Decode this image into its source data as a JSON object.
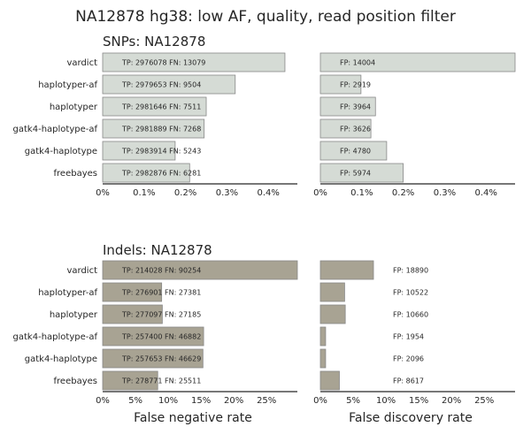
{
  "title": "NA12878 hg38: low AF, quality, read position filter",
  "colors": {
    "snp_bar": "#d5dbd5",
    "indel_bar": "#a8a393",
    "bar_edge": "#888888",
    "axis": "#262626"
  },
  "chart_data": [
    {
      "type": "bar",
      "orientation": "horizontal",
      "panel_title": "SNPs: NA12878",
      "metric": "False negative rate",
      "xlabel": "",
      "categories": [
        "vardict",
        "haplotyper-af",
        "haplotyper",
        "gatk4-haplotype-af",
        "gatk4-haplotype",
        "freebayes"
      ],
      "values": [
        0.44,
        0.32,
        0.25,
        0.245,
        0.175,
        0.21
      ],
      "bar_labels": [
        "TP: 2976078 FN: 13079",
        "TP: 2979653 FN: 9504",
        "TP: 2981646 FN: 7511",
        "TP: 2981889 FN: 7268",
        "TP: 2983914 FN: 5243",
        "TP: 2982876 FN: 6281"
      ],
      "label_position": "inside",
      "xlim": [
        0,
        0.47
      ],
      "xticks": [
        0,
        0.1,
        0.2,
        0.3,
        0.4
      ],
      "xtick_labels": [
        "0%",
        "0.1%",
        "0.2%",
        "0.3%",
        "0.4%"
      ]
    },
    {
      "type": "bar",
      "orientation": "horizontal",
      "panel_title": "",
      "metric": "False discovery rate",
      "xlabel": "",
      "categories": [
        "vardict",
        "haplotyper-af",
        "haplotyper",
        "gatk4-haplotype-af",
        "gatk4-haplotype",
        "freebayes"
      ],
      "values": [
        0.47,
        0.098,
        0.133,
        0.122,
        0.16,
        0.2
      ],
      "bar_labels": [
        "FP: 14004",
        "FP: 2919",
        "FP: 3964",
        "FP: 3626",
        "FP: 4780",
        "FP: 5974"
      ],
      "label_position": "inside",
      "xlim": [
        0,
        0.47
      ],
      "xticks": [
        0,
        0.1,
        0.2,
        0.3,
        0.4
      ],
      "xtick_labels": [
        "0%",
        "0.1%",
        "0.2%",
        "0.3%",
        "0.4%"
      ]
    },
    {
      "type": "bar",
      "orientation": "horizontal",
      "panel_title": "Indels: NA12878",
      "metric": "False negative rate",
      "xlabel": "False negative rate",
      "categories": [
        "vardict",
        "haplotyper-af",
        "haplotyper",
        "gatk4-haplotype-af",
        "gatk4-haplotype",
        "freebayes"
      ],
      "values": [
        29.7,
        9.0,
        9.1,
        15.4,
        15.3,
        8.4
      ],
      "bar_labels": [
        "TP: 214028 FN: 90254",
        "TP: 276901 FN: 27381",
        "TP: 277097 FN: 27185",
        "TP: 257400 FN: 46882",
        "TP: 257653 FN: 46629",
        "TP: 278771 FN: 25511"
      ],
      "label_position": "inside",
      "xlim": [
        0,
        29.7
      ],
      "xticks": [
        0,
        5,
        10,
        15,
        20,
        25
      ],
      "xtick_labels": [
        "0%",
        "5%",
        "10%",
        "15%",
        "20%",
        "25%"
      ]
    },
    {
      "type": "bar",
      "orientation": "horizontal",
      "panel_title": "",
      "metric": "False discovery rate",
      "xlabel": "False discovery rate",
      "categories": [
        "vardict",
        "haplotyper-af",
        "haplotyper",
        "gatk4-haplotype-af",
        "gatk4-haplotype",
        "freebayes"
      ],
      "values": [
        8.1,
        3.7,
        3.8,
        0.8,
        0.8,
        2.9
      ],
      "bar_labels": [
        "FP: 18890",
        "FP: 10522",
        "FP: 10660",
        "FP: 1954",
        "FP: 2096",
        "FP: 8617"
      ],
      "label_position": "fixed",
      "xlim": [
        0,
        29.7
      ],
      "xticks": [
        0,
        5,
        10,
        15,
        20,
        25
      ],
      "xtick_labels": [
        "0%",
        "5%",
        "10%",
        "15%",
        "20%",
        "25%"
      ]
    }
  ]
}
